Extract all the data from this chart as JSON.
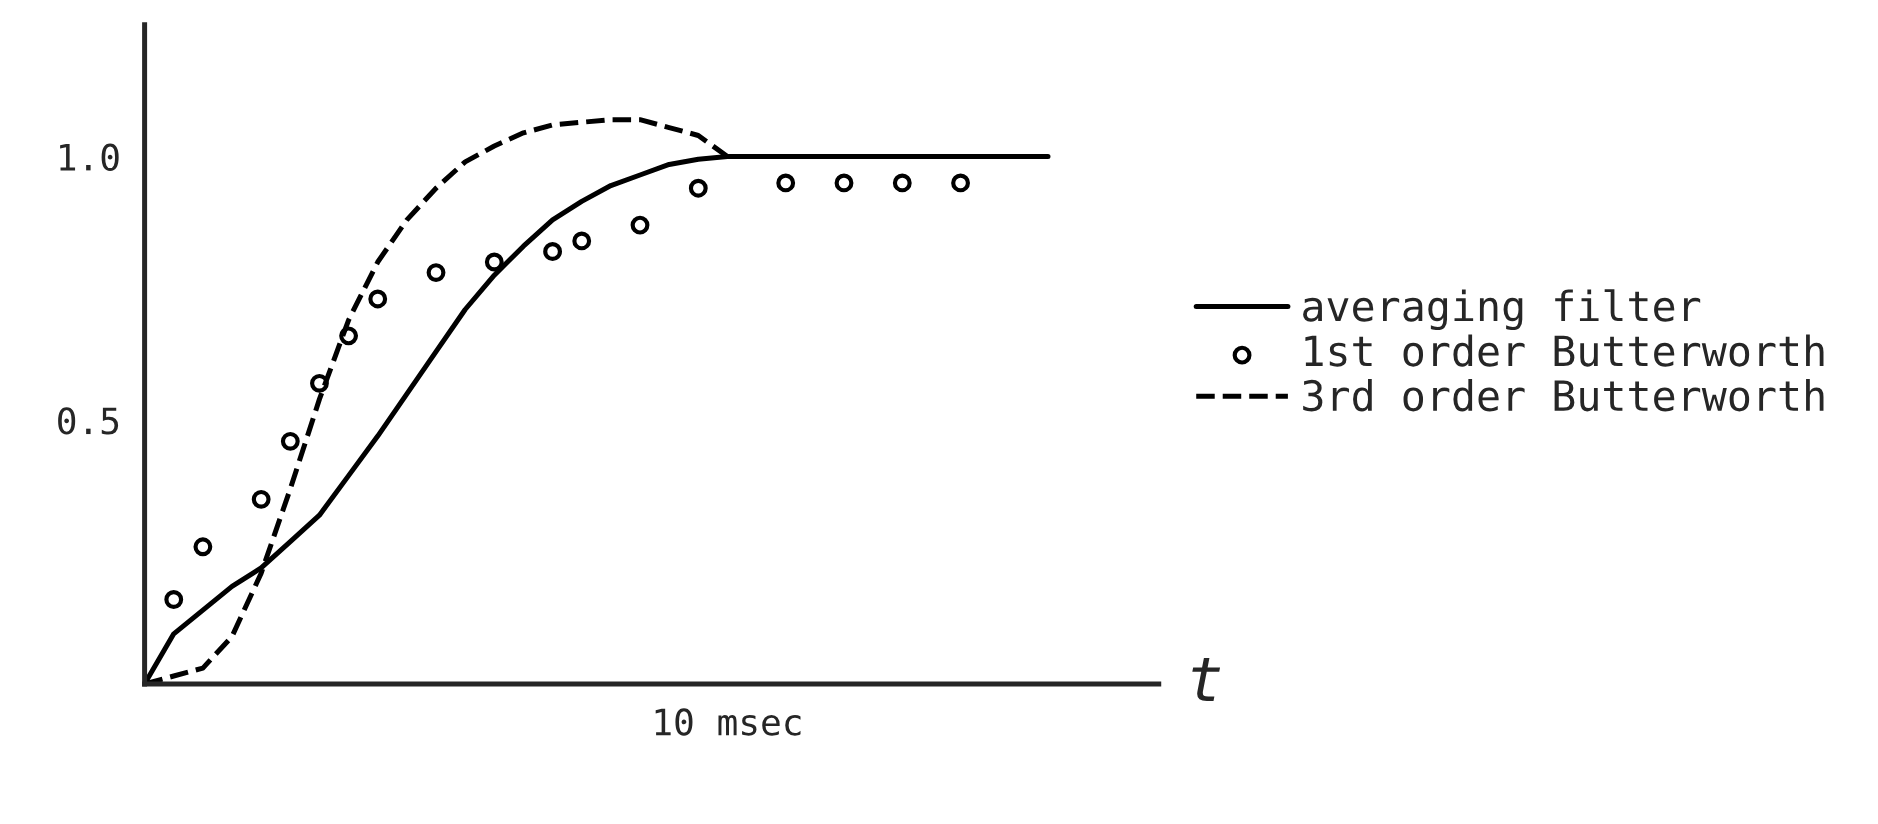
{
  "chart_data": {
    "type": "line",
    "xlabel": "t",
    "ylim": [
      0,
      1.25
    ],
    "categories": [
      null,
      null,
      null,
      null,
      null,
      null,
      null,
      null,
      null,
      null,
      null,
      null,
      null,
      null,
      null,
      null,
      null,
      null,
      null,
      null,
      "10 msec",
      null,
      null,
      null,
      null,
      null,
      null,
      null,
      null,
      null,
      null,
      null,
      null,
      null,
      null
    ],
    "yticks": [
      {
        "value": 0.5,
        "label": "0.5"
      },
      {
        "value": 1.0,
        "label": "1.0"
      }
    ],
    "legend": "right",
    "grid": false,
    "series": [
      {
        "name": "averaging filter",
        "color": "#000000",
        "line_style": "solid",
        "marker": "none",
        "values": [
          0,
          0.095,
          0.14,
          0.185,
          0.22,
          0.27,
          0.32,
          0.395,
          0.47,
          0.55,
          0.63,
          0.71,
          0.775,
          0.83,
          0.88,
          0.915,
          0.945,
          0.965,
          0.985,
          0.995,
          1.0,
          1.0,
          1.0,
          1.0,
          1.0,
          1.0,
          1.0,
          1.0,
          1.0,
          1.0,
          1.0,
          1.0,
          null,
          null,
          null
        ]
      },
      {
        "name": "1st order Butterworth",
        "color": "#000000",
        "type": "scatter",
        "marker": "circle",
        "values": [
          null,
          0.16,
          0.26,
          null,
          0.35,
          0.46,
          0.57,
          0.66,
          0.73,
          null,
          0.78,
          null,
          0.8,
          null,
          0.82,
          0.84,
          null,
          0.87,
          null,
          0.94,
          null,
          null,
          0.95,
          null,
          0.95,
          null,
          0.95,
          null,
          0.95,
          null,
          null,
          null,
          null,
          null,
          null
        ]
      },
      {
        "name": "3rd order Butterworth",
        "color": "#000000",
        "line_style": "dashed",
        "marker": "none",
        "values": [
          0,
          0.015,
          0.03,
          0.09,
          0.21,
          0.37,
          0.54,
          0.69,
          0.8,
          0.88,
          0.94,
          0.99,
          1.02,
          1.045,
          1.06,
          1.065,
          1.07,
          1.07,
          1.055,
          1.04,
          1.0,
          null,
          null,
          null,
          null,
          null,
          null,
          null,
          null,
          null,
          null,
          null,
          null,
          null,
          null
        ]
      }
    ]
  }
}
